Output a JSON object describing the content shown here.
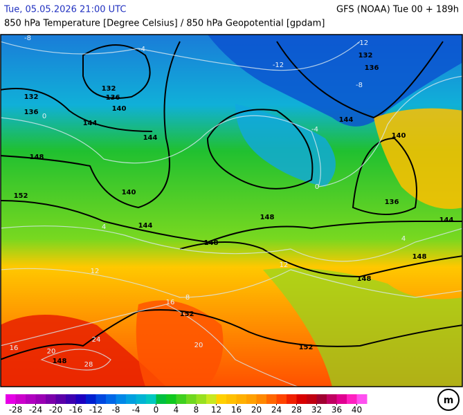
{
  "header": {
    "valid_time": "Tue, 05.05.2026 21:00 UTC",
    "model": "GFS (NOAA) Tue 00 + 189h",
    "title": "850 hPa Temperature [Degree Celsius] / 850 hPa Geopotential [gpdam]"
  },
  "map": {
    "geopotential_labels": [
      132,
      136,
      132,
      136,
      140,
      144,
      148,
      152,
      144,
      140,
      144,
      148,
      148,
      144,
      132,
      136,
      140,
      136,
      144,
      148,
      148,
      152,
      152,
      148
    ],
    "temperature_labels": [
      -8,
      -4,
      -12,
      -12,
      -8,
      0,
      -4,
      4,
      0,
      4,
      8,
      12,
      16,
      20,
      24,
      28,
      20,
      16,
      12
    ]
  },
  "colorbar": {
    "lim": [
      -30,
      42
    ],
    "ticks": [
      -28,
      -24,
      -20,
      -16,
      -12,
      -8,
      -4,
      0,
      4,
      8,
      12,
      16,
      20,
      24,
      28,
      32,
      36,
      40
    ],
    "colors": [
      "#e600e6",
      "#cc00cc",
      "#b000c0",
      "#9a00b4",
      "#7a00aa",
      "#5a00a8",
      "#3c00b0",
      "#1c00c0",
      "#0020d0",
      "#0048e0",
      "#0068e8",
      "#0088e8",
      "#00a0e0",
      "#00b4d4",
      "#00c8c0",
      "#00c040",
      "#10c820",
      "#40d020",
      "#70d820",
      "#98e020",
      "#c8e820",
      "#ffd000",
      "#ffc000",
      "#ffb000",
      "#ffa000",
      "#ff8800",
      "#ff6600",
      "#ff4400",
      "#f02000",
      "#d80000",
      "#c00010",
      "#a00030",
      "#c00060",
      "#e00090",
      "#ff20c0",
      "#ff50f0"
    ]
  }
}
